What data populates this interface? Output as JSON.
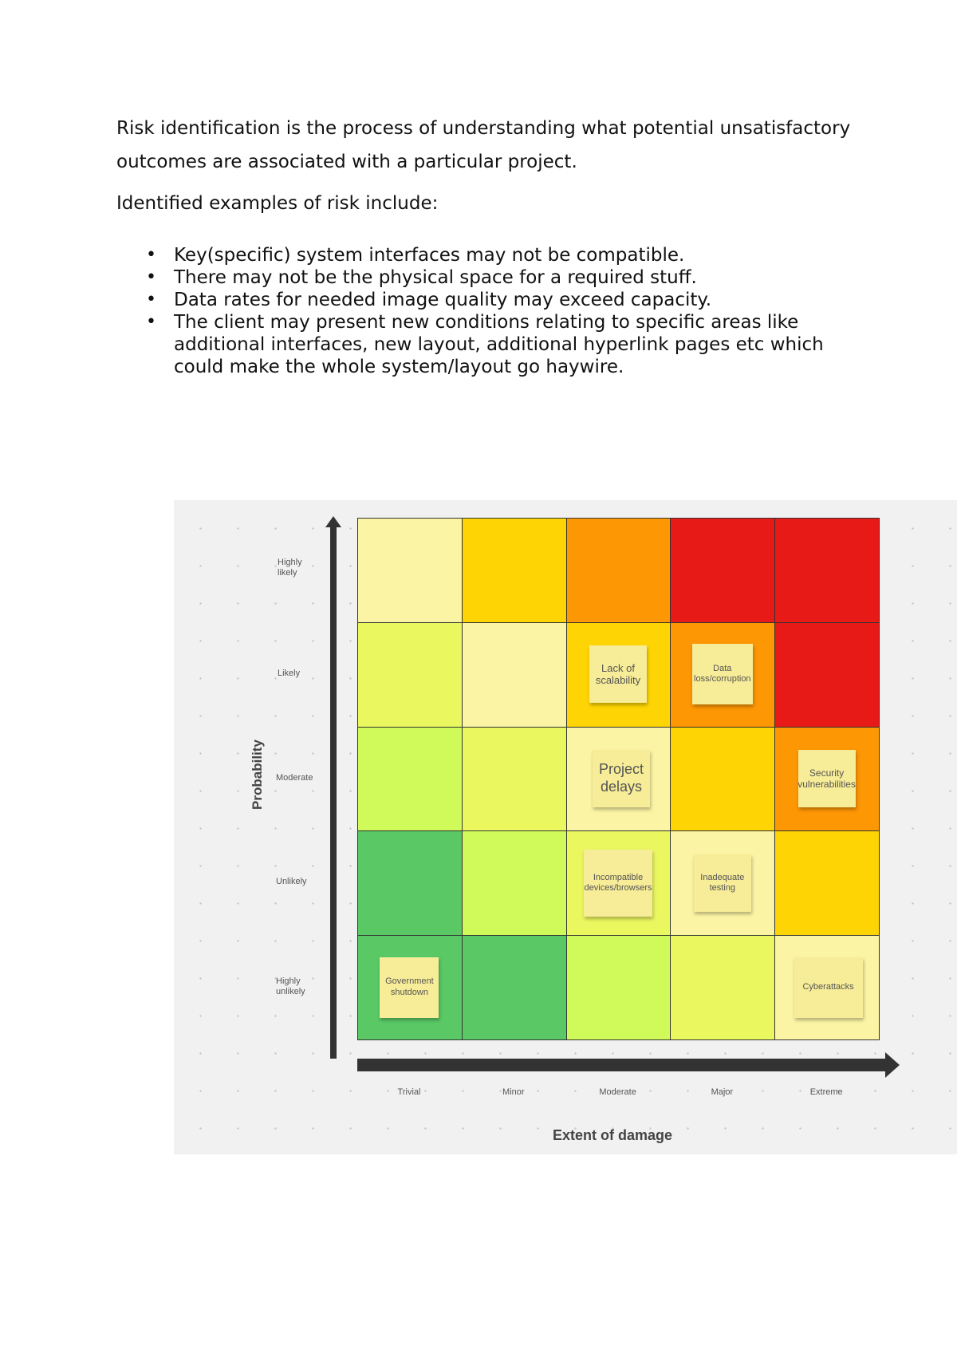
{
  "document": {
    "intro": "Risk identification is the process of understanding what potential unsatisfactory outcomes are associated with a particular project.",
    "examples_heading": "Identified examples of risk include:",
    "bullets": [
      "Key(specific) system interfaces may not be compatible.",
      "There may not be the physical space for a required stuff.",
      "Data rates for needed image quality may exceed capacity.",
      "The client may present new conditions relating to specific areas like additional interfaces, new layout, additional hyperlink pages etc which could make the whole system/layout go haywire."
    ]
  },
  "risk_matrix": {
    "y_axis_title": "Probability",
    "x_axis_title": "Extent of damage",
    "probability_levels": [
      "Highly likely",
      "Likely",
      "Moderate",
      "Unlikely",
      "Highly unlikely"
    ],
    "damage_levels": [
      "Trivial",
      "Minor",
      "Moderate",
      "Major",
      "Extreme"
    ],
    "cell_colors": [
      [
        "#fbf4a4",
        "#fed404",
        "#fd9704",
        "#e81a18",
        "#e81a18"
      ],
      [
        "#ebf75f",
        "#fbf4a4",
        "#fed404",
        "#fd9704",
        "#e81a18"
      ],
      [
        "#d0fa5a",
        "#ebf75f",
        "#fbf4a4",
        "#fed404",
        "#fd9704"
      ],
      [
        "#5ac865",
        "#d0fa5a",
        "#ebf75f",
        "#fbf4a4",
        "#fed404"
      ],
      [
        "#5ac865",
        "#5ac865",
        "#d0fa5a",
        "#ebf75f",
        "#fbf4a4"
      ]
    ],
    "arrow_color": "#333333",
    "risks": [
      {
        "label": "Lack of scalability",
        "probability": "Likely",
        "damage": "Moderate"
      },
      {
        "label": "Data loss/corruption",
        "probability": "Likely",
        "damage": "Major"
      },
      {
        "label": "Project delays",
        "probability": "Moderate",
        "damage": "Moderate"
      },
      {
        "label": "Security vulnerabilities",
        "probability": "Moderate",
        "damage": "Extreme"
      },
      {
        "label": "Incompatible devices/browsers",
        "probability": "Unlikely",
        "damage": "Moderate"
      },
      {
        "label": "Inadequate testing",
        "probability": "Unlikely",
        "damage": "Major"
      },
      {
        "label": "Government shutdown",
        "probability": "Highly unlikely",
        "damage": "Trivial"
      },
      {
        "label": "Cyberattacks",
        "probability": "Highly unlikely",
        "damage": "Extreme"
      }
    ]
  }
}
